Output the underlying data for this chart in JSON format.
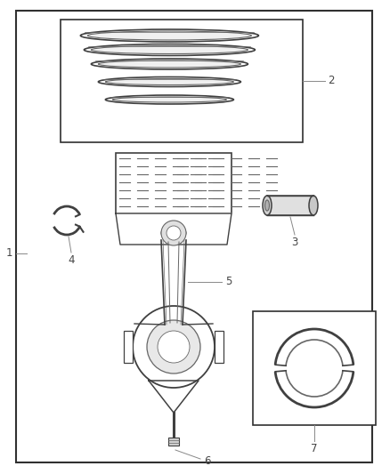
{
  "bg_color": "#ffffff",
  "lc": "#404040",
  "lc_light": "#888888",
  "lc_med": "#666666",
  "fig_width": 4.38,
  "fig_height": 5.33,
  "dpi": 100,
  "labels": [
    "1",
    "2",
    "3",
    "4",
    "5",
    "6",
    "7"
  ]
}
